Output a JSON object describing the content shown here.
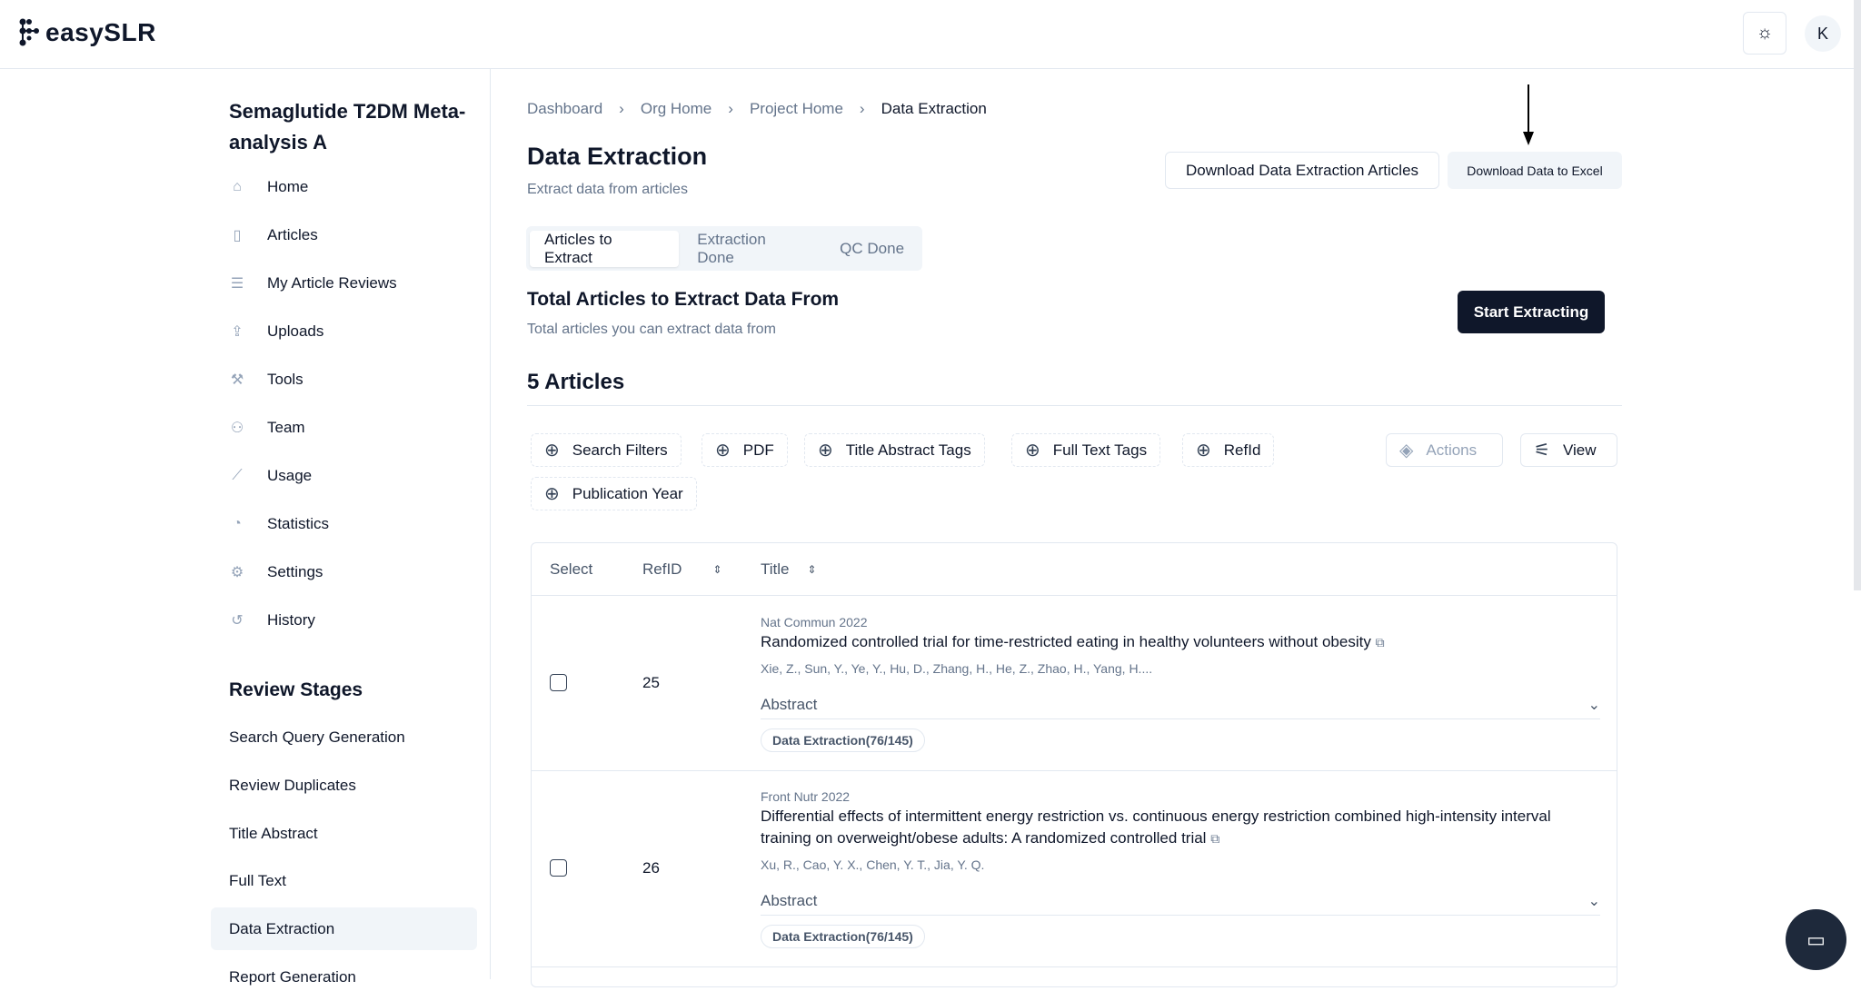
{
  "app": {
    "name": "easySLR",
    "avatar_initial": "K"
  },
  "sidebar": {
    "project_title": "Semaglutide T2DM Meta-analysis A",
    "items": [
      {
        "label": "Home",
        "icon": "home-icon"
      },
      {
        "label": "Articles",
        "icon": "file-icon"
      },
      {
        "label": "My Article Reviews",
        "icon": "list-check-icon"
      },
      {
        "label": "Uploads",
        "icon": "upload-icon"
      },
      {
        "label": "Tools",
        "icon": "wrench-icon"
      },
      {
        "label": "Team",
        "icon": "users-icon"
      },
      {
        "label": "Usage",
        "icon": "line-chart-icon"
      },
      {
        "label": "Statistics",
        "icon": "pie-chart-icon"
      },
      {
        "label": "Settings",
        "icon": "gear-icon"
      },
      {
        "label": "History",
        "icon": "history-icon"
      }
    ],
    "stages_heading": "Review Stages",
    "stages": [
      "Search Query Generation",
      "Review Duplicates",
      "Title Abstract",
      "Full Text",
      "Data Extraction",
      "Report Generation"
    ],
    "active_stage": "Data Extraction"
  },
  "breadcrumb": [
    "Dashboard",
    "Org Home",
    "Project Home",
    "Data Extraction"
  ],
  "page": {
    "title": "Data Extraction",
    "subtitle": "Extract data from articles",
    "download_articles": "Download Data Extraction Articles",
    "download_excel": "Download Data to Excel"
  },
  "tabs": [
    {
      "label": "Articles to Extract",
      "active": true
    },
    {
      "label": "Extraction Done"
    },
    {
      "label": "QC Done"
    }
  ],
  "section": {
    "title": "Total Articles to Extract Data From",
    "subtitle": "Total articles you can extract data from",
    "start": "Start Extracting",
    "count": "5 Articles"
  },
  "filters": [
    "Search Filters",
    "PDF",
    "Title Abstract Tags",
    "Full Text Tags",
    "RefId",
    "Publication Year"
  ],
  "actions": {
    "actions": "Actions",
    "view": "View"
  },
  "table": {
    "headers": [
      "Select",
      "RefID",
      "Title"
    ],
    "rows": [
      {
        "refid": "25",
        "journal": "Nat Commun 2022",
        "title": "Randomized controlled trial for time-restricted eating in healthy volunteers without obesity",
        "authors": "Xie, Z., Sun, Y., Ye, Y., Hu, D., Zhang, H., He, Z., Zhao, H., Yang, H....",
        "abstract": "Abstract",
        "badge": "Data Extraction(76/145)"
      },
      {
        "refid": "26",
        "journal": "Front Nutr 2022",
        "title": "Differential effects of intermittent energy restriction vs. continuous energy restriction combined high-intensity interval training on overweight/obese adults: A randomized controlled trial",
        "authors": "Xu, R., Cao, Y. X., Chen, Y. T., Jia, Y. Q.",
        "abstract": "Abstract",
        "badge": "Data Extraction(76/145)"
      }
    ]
  }
}
